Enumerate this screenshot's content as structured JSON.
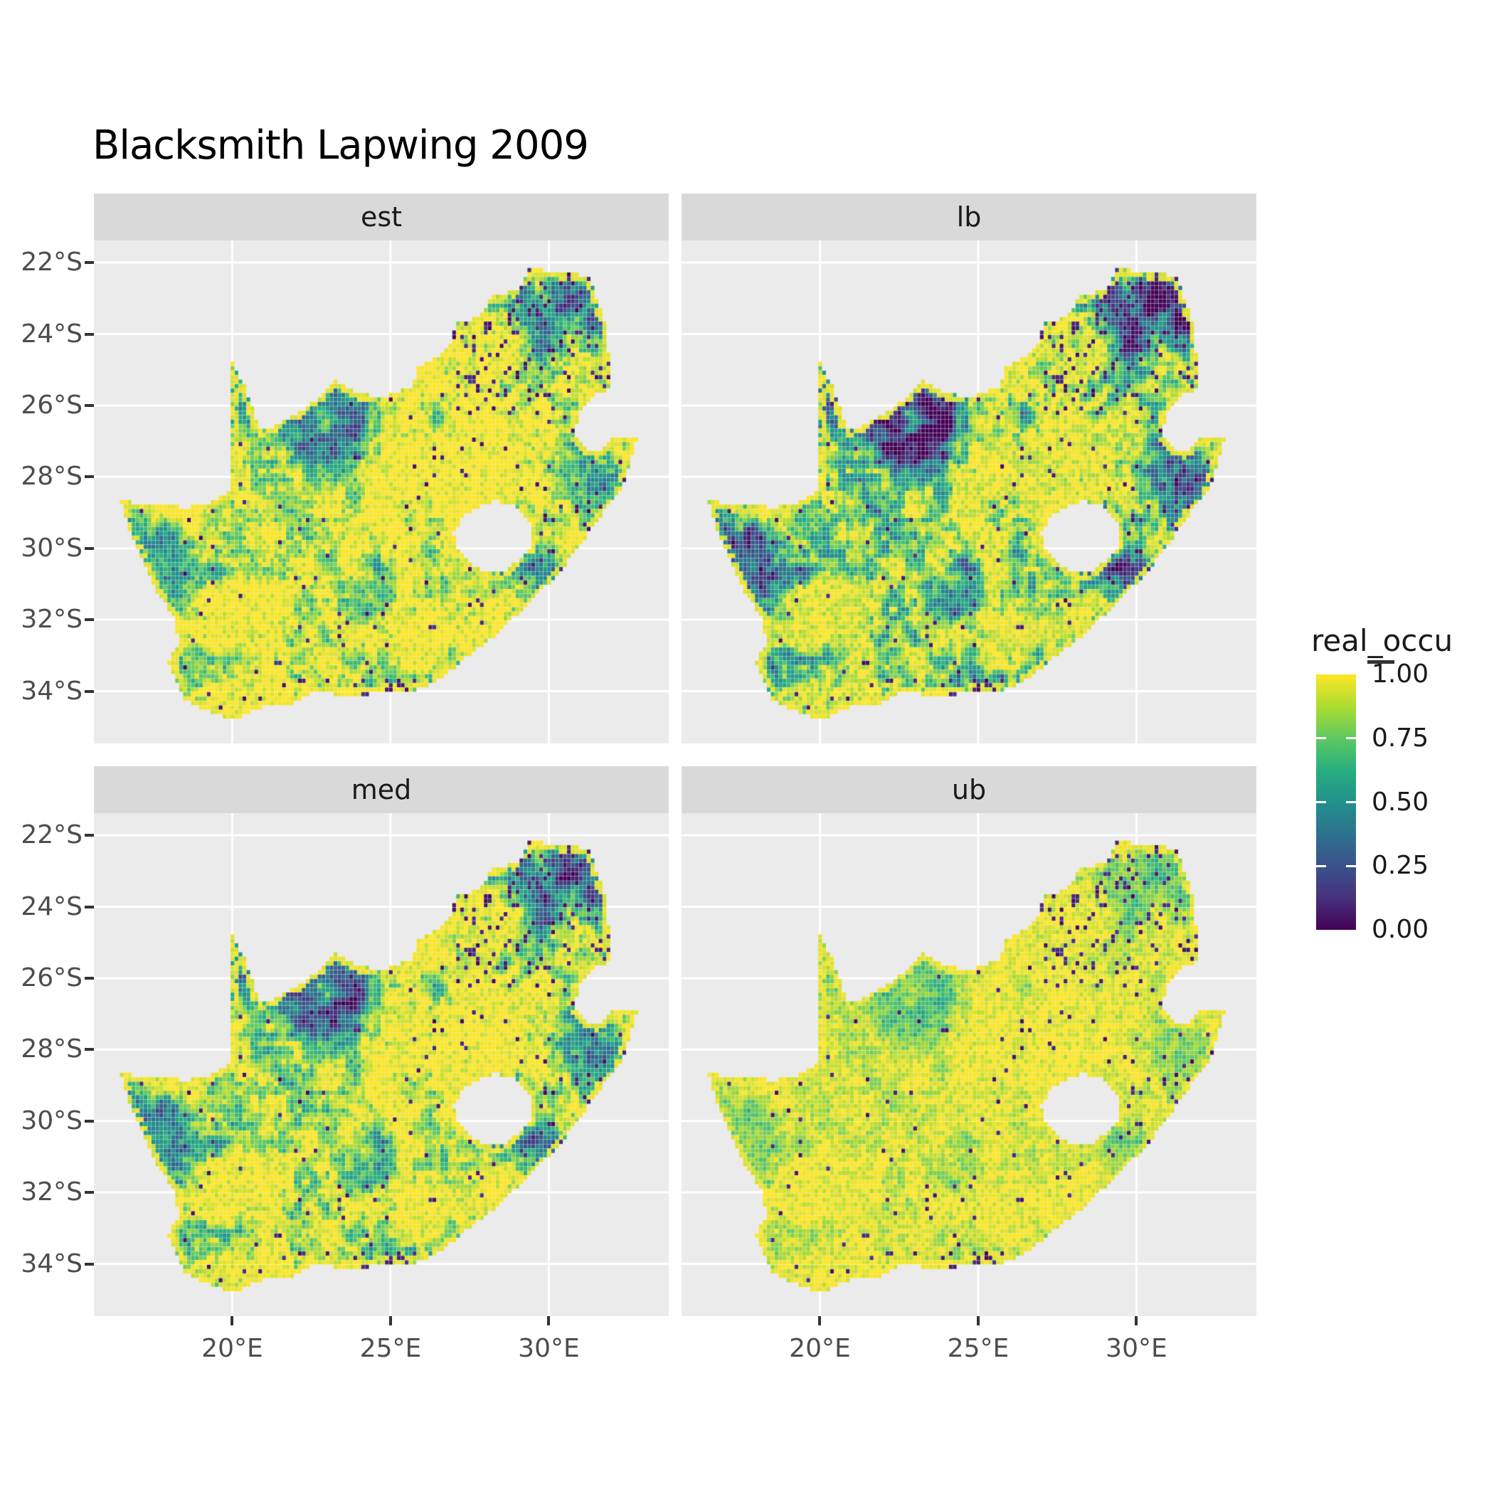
{
  "title": "Blacksmith Lapwing 2009",
  "facets": [
    {
      "label": "est"
    },
    {
      "label": "lb"
    },
    {
      "label": "med"
    },
    {
      "label": "ub"
    }
  ],
  "y_axis": {
    "ticks": [
      {
        "label": "22°S",
        "deg": 22
      },
      {
        "label": "24°S",
        "deg": 24
      },
      {
        "label": "26°S",
        "deg": 26
      },
      {
        "label": "28°S",
        "deg": 28
      },
      {
        "label": "30°S",
        "deg": 30
      },
      {
        "label": "32°S",
        "deg": 32
      },
      {
        "label": "34°S",
        "deg": 34
      }
    ]
  },
  "x_axis": {
    "ticks": [
      {
        "label": "20°E",
        "lon": 20
      },
      {
        "label": "25°E",
        "lon": 25
      },
      {
        "label": "30°E",
        "lon": 30
      }
    ]
  },
  "legend": {
    "title": "real_occu",
    "labels": [
      {
        "label": "1.00",
        "value": 1.0
      },
      {
        "label": "0.75",
        "value": 0.75
      },
      {
        "label": "0.50",
        "value": 0.5
      },
      {
        "label": "0.25",
        "value": 0.25
      },
      {
        "label": "0.00",
        "value": 0.0
      }
    ]
  },
  "colors": {
    "panel_bg": "#EBEBEB",
    "strip_bg": "#D9D9D9",
    "grid": "#FFFFFF",
    "tick": "#333333",
    "axis_text": "#4D4D4D",
    "text": "#1A1A1A",
    "viridis": [
      {
        "p": 0.0,
        "c": "#440154"
      },
      {
        "p": 0.125,
        "c": "#46327E"
      },
      {
        "p": 0.25,
        "c": "#3B528B"
      },
      {
        "p": 0.375,
        "c": "#2C728E"
      },
      {
        "p": 0.5,
        "c": "#21918C"
      },
      {
        "p": 0.625,
        "c": "#28AE80"
      },
      {
        "p": 0.75,
        "c": "#5EC962"
      },
      {
        "p": 0.875,
        "c": "#ADDC30"
      },
      {
        "p": 1.0,
        "c": "#FDE725"
      }
    ]
  },
  "chart_data": {
    "type": "heatmap",
    "subtype": "faceted-raster-map",
    "title": "Blacksmith Lapwing 2009",
    "region": "South Africa (quarter-degree style occupancy raster, Lesotho shown as hole)",
    "facets": [
      "est",
      "lb",
      "med",
      "ub"
    ],
    "legend_title": "real_occu",
    "legend_breaks": [
      0.0,
      0.25,
      0.5,
      0.75,
      1.0
    ],
    "value_range": [
      0,
      1
    ],
    "colormap": "viridis",
    "x_ticks": [
      "20°E",
      "25°E",
      "30°E"
    ],
    "y_ticks": [
      "22°S",
      "24°S",
      "26°S",
      "28°S",
      "30°S",
      "32°S",
      "34°S"
    ],
    "grid": true,
    "legend_position": "right",
    "facet_pattern_notes": {
      "est": "mostly high (yellow ~0.9-1) core; mid (teal ~0.4-0.6) in NW Kalahari, 20°E finger and west coast; dark (<0.25) speckle in NE Limpopo lowveld and along SE coast",
      "lb": "same spatial pattern shifted lower: NW/west-coast patches dark blue ~0.1-0.3, more dark speckle",
      "med": "similar to est, slightly lower in uncertain regions",
      "ub": "mostly saturated yellow ~1 with green patches in NW and scattered near-zero dark specks"
    }
  },
  "render": {
    "outline": [
      [
        16.45,
        -28.58
      ],
      [
        17.1,
        -28.78
      ],
      [
        17.85,
        -28.77
      ],
      [
        18.55,
        -28.88
      ],
      [
        19.3,
        -28.72
      ],
      [
        19.98,
        -28.42
      ],
      [
        19.98,
        -24.77
      ],
      [
        20.35,
        -25.35
      ],
      [
        20.65,
        -26.1
      ],
      [
        20.85,
        -26.7
      ],
      [
        21.4,
        -26.55
      ],
      [
        22.1,
        -26.2
      ],
      [
        22.65,
        -25.85
      ],
      [
        23.3,
        -25.3
      ],
      [
        24.0,
        -25.65
      ],
      [
        24.75,
        -25.78
      ],
      [
        25.35,
        -25.6
      ],
      [
        25.65,
        -25.48
      ],
      [
        25.9,
        -24.9
      ],
      [
        26.45,
        -24.65
      ],
      [
        26.85,
        -24.3
      ],
      [
        27.15,
        -23.65
      ],
      [
        27.75,
        -23.55
      ],
      [
        28.25,
        -22.95
      ],
      [
        29.05,
        -22.75
      ],
      [
        29.4,
        -22.15
      ],
      [
        30.0,
        -22.25
      ],
      [
        30.65,
        -22.3
      ],
      [
        31.3,
        -22.4
      ],
      [
        31.55,
        -23.1
      ],
      [
        31.85,
        -23.85
      ],
      [
        31.9,
        -24.7
      ],
      [
        31.95,
        -25.55
      ],
      [
        31.4,
        -25.72
      ],
      [
        30.95,
        -26.25
      ],
      [
        30.8,
        -26.85
      ],
      [
        31.15,
        -27.2
      ],
      [
        31.65,
        -27.3
      ],
      [
        32.1,
        -26.86
      ],
      [
        32.85,
        -26.86
      ],
      [
        32.55,
        -27.6
      ],
      [
        32.35,
        -28.3
      ],
      [
        31.75,
        -28.95
      ],
      [
        31.05,
        -29.85
      ],
      [
        30.35,
        -30.65
      ],
      [
        29.6,
        -31.35
      ],
      [
        28.9,
        -31.95
      ],
      [
        28.1,
        -32.6
      ],
      [
        27.2,
        -33.2
      ],
      [
        26.45,
        -33.75
      ],
      [
        25.65,
        -34.0
      ],
      [
        25.0,
        -33.98
      ],
      [
        24.2,
        -34.1
      ],
      [
        23.35,
        -34.1
      ],
      [
        22.55,
        -34.05
      ],
      [
        21.8,
        -34.4
      ],
      [
        20.95,
        -34.45
      ],
      [
        20.0,
        -34.82
      ],
      [
        19.35,
        -34.6
      ],
      [
        18.85,
        -34.4
      ],
      [
        18.45,
        -34.2
      ],
      [
        18.3,
        -33.85
      ],
      [
        18.0,
        -33.2
      ],
      [
        18.3,
        -32.65
      ],
      [
        18.2,
        -31.95
      ],
      [
        17.6,
        -31.2
      ],
      [
        17.05,
        -30.1
      ],
      [
        16.65,
        -29.25
      ]
    ],
    "lesotho": [
      [
        27.3,
        -29.1
      ],
      [
        27.75,
        -28.88
      ],
      [
        28.3,
        -28.7
      ],
      [
        28.75,
        -28.75
      ],
      [
        29.15,
        -29.0
      ],
      [
        29.45,
        -29.35
      ],
      [
        29.4,
        -29.95
      ],
      [
        29.1,
        -30.3
      ],
      [
        28.6,
        -30.65
      ],
      [
        28.0,
        -30.68
      ],
      [
        27.5,
        -30.4
      ],
      [
        27.1,
        -29.95
      ],
      [
        27.0,
        -29.55
      ]
    ],
    "low_blobs": [
      [
        22.6,
        -26.8,
        2.4,
        1.5,
        0.5
      ],
      [
        23.9,
        -26.3,
        1.0,
        0.7,
        0.3
      ],
      [
        20.35,
        -25.5,
        0.7,
        1.1,
        0.5
      ],
      [
        18.1,
        -30.7,
        1.1,
        1.8,
        0.45
      ],
      [
        30.6,
        -23.4,
        2.2,
        1.4,
        0.58
      ],
      [
        31.4,
        -27.9,
        0.9,
        1.4,
        0.42
      ],
      [
        29.5,
        -30.9,
        1.3,
        1.0,
        0.38
      ],
      [
        29.7,
        -29.25,
        0.7,
        0.5,
        0.35
      ],
      [
        26.5,
        -33.6,
        2.4,
        0.55,
        0.3
      ],
      [
        24.5,
        -31.0,
        2.0,
        1.3,
        0.18
      ],
      [
        18.6,
        -33.6,
        0.9,
        0.8,
        0.15
      ]
    ],
    "facet_params": [
      {
        "label": "est",
        "seed": 11,
        "lf": 0.02,
        "hf": 0.0,
        "bias": 0.02,
        "na": 0.13
      },
      {
        "label": "lb",
        "seed": 23,
        "lf": 0.5,
        "hf": 0.0,
        "bias": -0.04,
        "na": 0.11
      },
      {
        "label": "med",
        "seed": 37,
        "lf": 0.2,
        "hf": 0.0,
        "bias": 0.0,
        "na": 0.11
      },
      {
        "label": "ub",
        "seed": 51,
        "lf": 0.0,
        "hf": 0.58,
        "bias": -0.02,
        "na": 0.09
      }
    ]
  }
}
